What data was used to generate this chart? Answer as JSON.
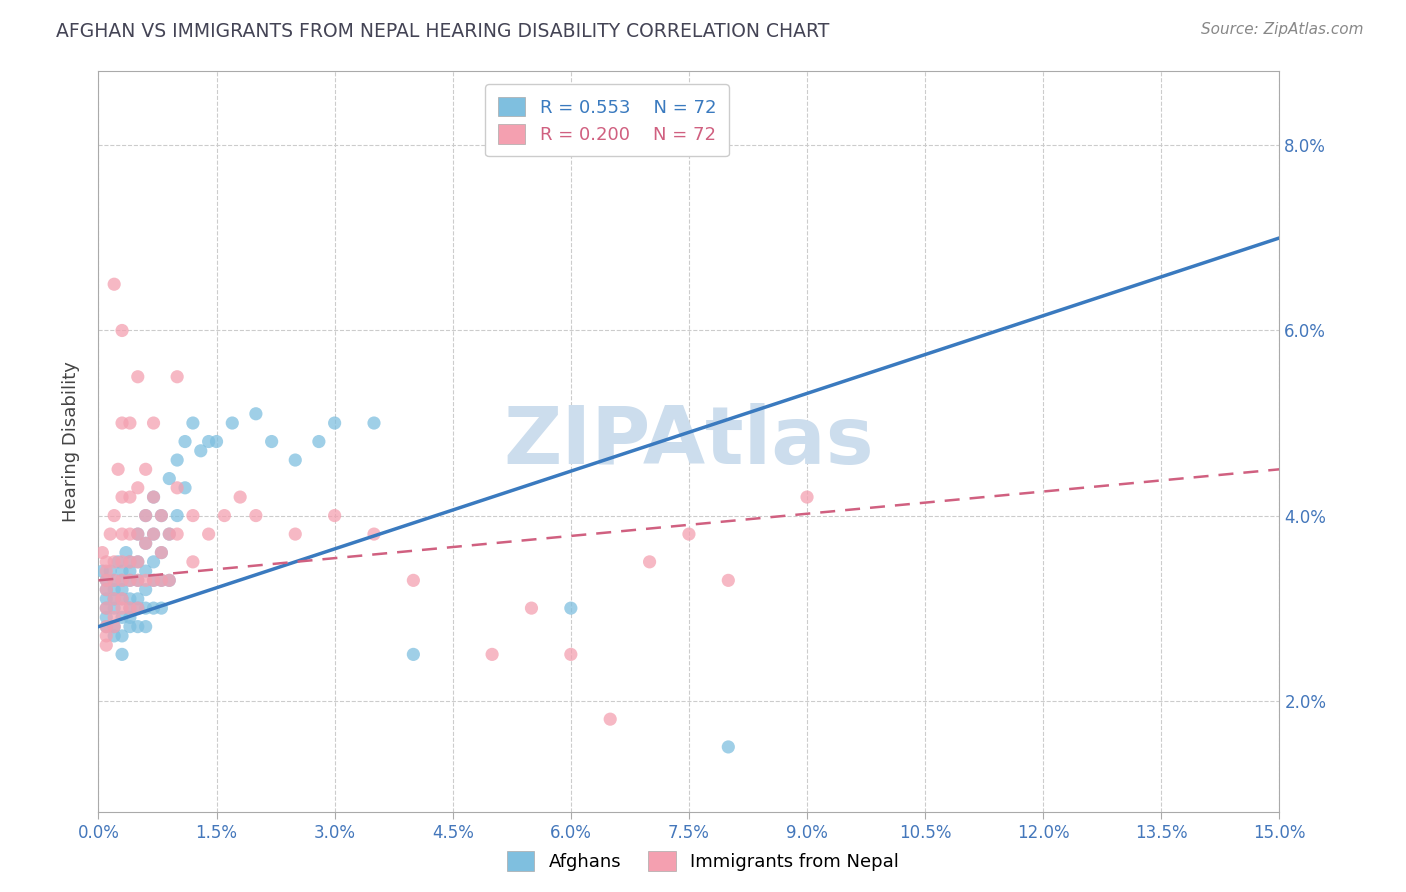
{
  "title": "AFGHAN VS IMMIGRANTS FROM NEPAL HEARING DISABILITY CORRELATION CHART",
  "source_text": "Source: ZipAtlas.com",
  "xlabel_afghans": "Afghans",
  "xlabel_nepal": "Immigrants from Nepal",
  "ylabel": "Hearing Disability",
  "x_min": 0.0,
  "x_max": 0.15,
  "y_min": 0.008,
  "y_max": 0.088,
  "y_ticks": [
    0.02,
    0.04,
    0.06,
    0.08
  ],
  "x_ticks": [
    0.0,
    0.015,
    0.03,
    0.045,
    0.06,
    0.075,
    0.09,
    0.105,
    0.12,
    0.135,
    0.15
  ],
  "afghan_color": "#7fbfdf",
  "nepal_color": "#f4a0b0",
  "afghan_line_color": "#3a7abf",
  "nepal_line_color": "#d06080",
  "R_afghan": 0.553,
  "R_nepal": 0.2,
  "N": 72,
  "watermark": "ZIPAtlas",
  "watermark_color": "#ccdded",
  "background_color": "#ffffff",
  "afghan_line_start": 0.028,
  "afghan_line_end": 0.07,
  "nepal_line_start": 0.033,
  "nepal_line_end": 0.045,
  "afghan_scatter": [
    [
      0.0005,
      0.034
    ],
    [
      0.001,
      0.033
    ],
    [
      0.001,
      0.032
    ],
    [
      0.001,
      0.031
    ],
    [
      0.001,
      0.03
    ],
    [
      0.001,
      0.029
    ],
    [
      0.001,
      0.028
    ],
    [
      0.0015,
      0.034
    ],
    [
      0.002,
      0.033
    ],
    [
      0.002,
      0.032
    ],
    [
      0.002,
      0.031
    ],
    [
      0.002,
      0.03
    ],
    [
      0.002,
      0.028
    ],
    [
      0.002,
      0.027
    ],
    [
      0.0025,
      0.035
    ],
    [
      0.003,
      0.034
    ],
    [
      0.003,
      0.033
    ],
    [
      0.003,
      0.032
    ],
    [
      0.003,
      0.031
    ],
    [
      0.003,
      0.029
    ],
    [
      0.003,
      0.027
    ],
    [
      0.003,
      0.025
    ],
    [
      0.0035,
      0.036
    ],
    [
      0.004,
      0.035
    ],
    [
      0.004,
      0.034
    ],
    [
      0.004,
      0.033
    ],
    [
      0.004,
      0.031
    ],
    [
      0.004,
      0.03
    ],
    [
      0.004,
      0.029
    ],
    [
      0.004,
      0.028
    ],
    [
      0.005,
      0.038
    ],
    [
      0.005,
      0.035
    ],
    [
      0.005,
      0.033
    ],
    [
      0.005,
      0.031
    ],
    [
      0.005,
      0.03
    ],
    [
      0.005,
      0.028
    ],
    [
      0.006,
      0.04
    ],
    [
      0.006,
      0.037
    ],
    [
      0.006,
      0.034
    ],
    [
      0.006,
      0.032
    ],
    [
      0.006,
      0.03
    ],
    [
      0.006,
      0.028
    ],
    [
      0.007,
      0.042
    ],
    [
      0.007,
      0.038
    ],
    [
      0.007,
      0.035
    ],
    [
      0.007,
      0.033
    ],
    [
      0.007,
      0.03
    ],
    [
      0.008,
      0.04
    ],
    [
      0.008,
      0.036
    ],
    [
      0.008,
      0.033
    ],
    [
      0.008,
      0.03
    ],
    [
      0.009,
      0.044
    ],
    [
      0.009,
      0.038
    ],
    [
      0.009,
      0.033
    ],
    [
      0.01,
      0.046
    ],
    [
      0.01,
      0.04
    ],
    [
      0.011,
      0.048
    ],
    [
      0.011,
      0.043
    ],
    [
      0.012,
      0.05
    ],
    [
      0.013,
      0.047
    ],
    [
      0.014,
      0.048
    ],
    [
      0.015,
      0.048
    ],
    [
      0.017,
      0.05
    ],
    [
      0.02,
      0.051
    ],
    [
      0.022,
      0.048
    ],
    [
      0.025,
      0.046
    ],
    [
      0.028,
      0.048
    ],
    [
      0.03,
      0.05
    ],
    [
      0.035,
      0.05
    ],
    [
      0.04,
      0.025
    ],
    [
      0.06,
      0.03
    ],
    [
      0.08,
      0.015
    ]
  ],
  "nepal_scatter": [
    [
      0.0005,
      0.036
    ],
    [
      0.001,
      0.035
    ],
    [
      0.001,
      0.034
    ],
    [
      0.001,
      0.033
    ],
    [
      0.001,
      0.032
    ],
    [
      0.001,
      0.03
    ],
    [
      0.001,
      0.028
    ],
    [
      0.001,
      0.027
    ],
    [
      0.001,
      0.026
    ],
    [
      0.0015,
      0.038
    ],
    [
      0.002,
      0.065
    ],
    [
      0.002,
      0.04
    ],
    [
      0.002,
      0.035
    ],
    [
      0.002,
      0.033
    ],
    [
      0.002,
      0.031
    ],
    [
      0.002,
      0.029
    ],
    [
      0.002,
      0.028
    ],
    [
      0.0025,
      0.045
    ],
    [
      0.003,
      0.06
    ],
    [
      0.003,
      0.05
    ],
    [
      0.003,
      0.042
    ],
    [
      0.003,
      0.038
    ],
    [
      0.003,
      0.035
    ],
    [
      0.003,
      0.033
    ],
    [
      0.003,
      0.031
    ],
    [
      0.003,
      0.03
    ],
    [
      0.004,
      0.05
    ],
    [
      0.004,
      0.042
    ],
    [
      0.004,
      0.038
    ],
    [
      0.004,
      0.035
    ],
    [
      0.004,
      0.033
    ],
    [
      0.004,
      0.03
    ],
    [
      0.005,
      0.055
    ],
    [
      0.005,
      0.043
    ],
    [
      0.005,
      0.038
    ],
    [
      0.005,
      0.035
    ],
    [
      0.005,
      0.033
    ],
    [
      0.005,
      0.03
    ],
    [
      0.006,
      0.045
    ],
    [
      0.006,
      0.04
    ],
    [
      0.006,
      0.037
    ],
    [
      0.006,
      0.033
    ],
    [
      0.007,
      0.05
    ],
    [
      0.007,
      0.042
    ],
    [
      0.007,
      0.038
    ],
    [
      0.007,
      0.033
    ],
    [
      0.008,
      0.04
    ],
    [
      0.008,
      0.036
    ],
    [
      0.008,
      0.033
    ],
    [
      0.009,
      0.038
    ],
    [
      0.009,
      0.033
    ],
    [
      0.01,
      0.055
    ],
    [
      0.01,
      0.043
    ],
    [
      0.01,
      0.038
    ],
    [
      0.012,
      0.04
    ],
    [
      0.012,
      0.035
    ],
    [
      0.014,
      0.038
    ],
    [
      0.016,
      0.04
    ],
    [
      0.018,
      0.042
    ],
    [
      0.02,
      0.04
    ],
    [
      0.025,
      0.038
    ],
    [
      0.03,
      0.04
    ],
    [
      0.035,
      0.038
    ],
    [
      0.04,
      0.033
    ],
    [
      0.05,
      0.025
    ],
    [
      0.055,
      0.03
    ],
    [
      0.06,
      0.025
    ],
    [
      0.065,
      0.018
    ],
    [
      0.07,
      0.035
    ],
    [
      0.075,
      0.038
    ],
    [
      0.08,
      0.033
    ],
    [
      0.09,
      0.042
    ]
  ]
}
